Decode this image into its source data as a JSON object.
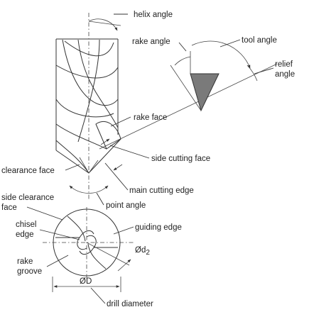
{
  "labels": {
    "helix_angle": "helix angle",
    "rake_angle": "rake angle",
    "tool_angle": "tool angle",
    "relief_angle_1": "relief",
    "relief_angle_2": "angle",
    "rake_face": "rake face",
    "side_cutting_face": "side cutting face",
    "clearance_face": "clearance face",
    "main_cutting_edge": "main cutting edge",
    "point_angle": "point angle",
    "side_clearance_face_1": "side clearance",
    "side_clearance_face_2": "face",
    "chisel_edge_1": "chisel",
    "chisel_edge_2": "edge",
    "guiding_edge": "guiding edge",
    "d2": "Ød",
    "d2_sub": "2",
    "rake_groove_1": "rake",
    "rake_groove_2": "groove",
    "diameter_symbol": "ØD",
    "drill_diameter": "drill diameter"
  },
  "colors": {
    "tool_fill": "#7a7a7a",
    "line": "#333333"
  }
}
